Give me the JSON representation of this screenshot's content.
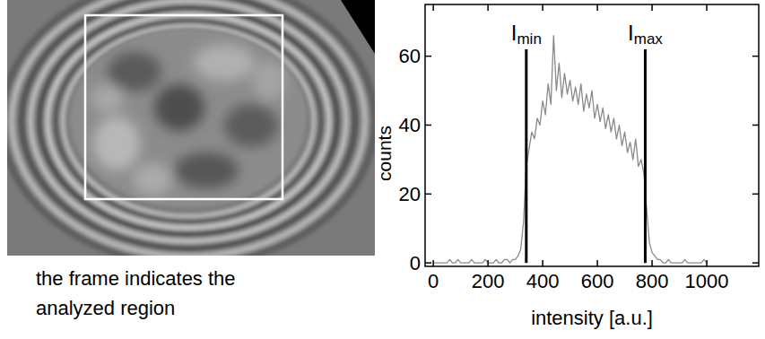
{
  "panel": {
    "caption": "the frame indicates the analyzed region"
  },
  "chart_data": {
    "type": "line",
    "xlabel": "intensity [a.u.]",
    "ylabel": "counts",
    "color": "#8a8a8a",
    "grid": false,
    "xlim": [
      -30,
      1190
    ],
    "ylim": [
      -1,
      75
    ],
    "xticks": [
      0,
      200,
      400,
      600,
      800,
      1000
    ],
    "yticks": [
      0,
      20,
      40,
      60
    ],
    "x": [
      0,
      10,
      20,
      30,
      40,
      50,
      60,
      70,
      80,
      90,
      100,
      110,
      120,
      130,
      140,
      150,
      160,
      170,
      180,
      190,
      200,
      210,
      220,
      230,
      240,
      250,
      260,
      270,
      280,
      290,
      300,
      310,
      320,
      330,
      340,
      350,
      360,
      370,
      380,
      390,
      400,
      410,
      420,
      430,
      440,
      450,
      460,
      470,
      480,
      490,
      500,
      510,
      520,
      530,
      540,
      550,
      560,
      570,
      580,
      590,
      600,
      610,
      620,
      630,
      640,
      650,
      660,
      670,
      680,
      690,
      700,
      710,
      720,
      730,
      740,
      750,
      760,
      770,
      780,
      790,
      800,
      810,
      820,
      830,
      840,
      850,
      860,
      870,
      880,
      890,
      900,
      910,
      920,
      930,
      940,
      950,
      960,
      970,
      980,
      990,
      1000
    ],
    "values": [
      0,
      0,
      0,
      0,
      0,
      0,
      1,
      0,
      0,
      1,
      0,
      0,
      0,
      0,
      1,
      0,
      0,
      0,
      0,
      1,
      0,
      0,
      0,
      1,
      0,
      0,
      1,
      1,
      0,
      1,
      1,
      2,
      4,
      12,
      28,
      33,
      38,
      36,
      42,
      40,
      47,
      43,
      52,
      46,
      66,
      50,
      58,
      48,
      55,
      49,
      53,
      47,
      51,
      46,
      52,
      44,
      49,
      45,
      50,
      42,
      46,
      41,
      45,
      39,
      43,
      38,
      42,
      36,
      40,
      34,
      38,
      32,
      35,
      30,
      36,
      28,
      30,
      26,
      16,
      6,
      3,
      2,
      1,
      1,
      0,
      0,
      1,
      0,
      0,
      0,
      0,
      0,
      1,
      0,
      0,
      0,
      0,
      0,
      0,
      1,
      0
    ],
    "annotations": [
      {
        "label": "I",
        "sub": "min",
        "x": 340,
        "y": 62
      },
      {
        "label": "I",
        "sub": "max",
        "x": 775,
        "y": 62
      }
    ]
  }
}
